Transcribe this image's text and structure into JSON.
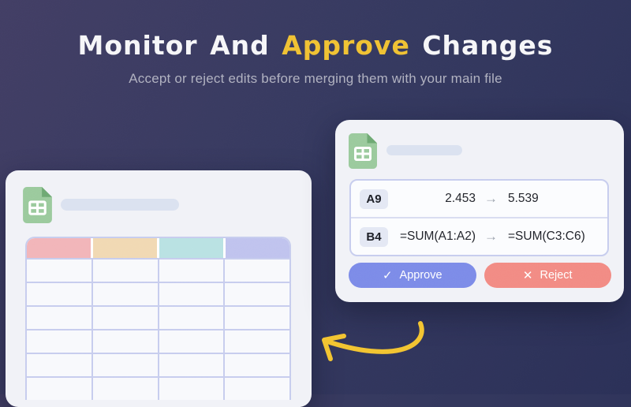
{
  "header": {
    "title_part1": "Monitor And ",
    "title_highlight": "Approve",
    "title_part2": " Changes",
    "subtitle": "Accept or reject edits before merging them with your main file"
  },
  "left_card": {
    "icon": "google-sheets-icon",
    "file_title_placeholder": "",
    "table": {
      "columns": 4,
      "body_rows": 6,
      "header_colors": [
        "#f2b5b9",
        "#f1d9b3",
        "#b9e2e3",
        "#c0c3ee"
      ]
    }
  },
  "right_card": {
    "icon": "google-sheets-icon",
    "file_title_placeholder": "",
    "arrow_glyph": "→",
    "changes": [
      {
        "cell": "A9",
        "old": "2.453",
        "new": "5.539"
      },
      {
        "cell": "B4",
        "old": "=SUM(A1:A2)",
        "new": "=SUM(C3:C6)"
      }
    ],
    "approve_icon": "✓",
    "approve_label": "Approve",
    "reject_icon": "✕",
    "reject_label": "Reject"
  },
  "colors": {
    "background_start": "#423e64",
    "background_end": "#2b3057",
    "title_white": "#f6f6f8",
    "accent_yellow": "#f0c233",
    "subtitle_gray": "#b0b1c0",
    "card_bg": "#f1f2f7",
    "approve_blue": "#7c8be8",
    "reject_red": "#f28b84",
    "sheets_green": "#9bca9d",
    "sheets_green_dark": "#6ea973",
    "table_border": "#c7cdee",
    "cell_bg": "#f8f9fc"
  }
}
